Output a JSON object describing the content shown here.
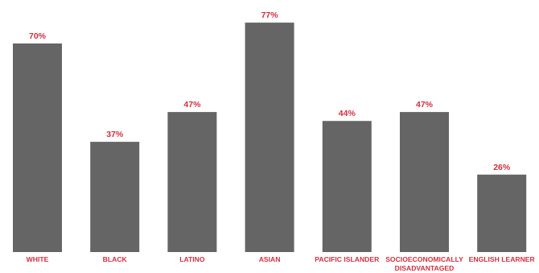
{
  "chart_data": {
    "type": "bar",
    "categories": [
      "WHITE",
      "BLACK",
      "LATINO",
      "ASIAN",
      "PACIFIC ISLANDER",
      "SOCIOECONOMICALLY DISADVANTAGED",
      "ENGLISH LEARNER"
    ],
    "category_label_lines": [
      [
        "WHITE"
      ],
      [
        "BLACK"
      ],
      [
        "LATINO"
      ],
      [
        "ASIAN"
      ],
      [
        "PACIFIC ISLANDER"
      ],
      [
        "SOCIOECONOMICALLY",
        "DISADVANTAGED"
      ],
      [
        "ENGLISH LEARNER"
      ]
    ],
    "values": [
      70,
      37,
      47,
      77,
      44,
      47,
      26
    ],
    "value_labels": [
      "70%",
      "37%",
      "47%",
      "77%",
      "44%",
      "47%",
      "26%"
    ],
    "ylim": [
      0,
      100
    ],
    "grid": false,
    "legend": "none",
    "colors": {
      "bar": "#656565",
      "label": "#d12f3f",
      "background": "#ffffff"
    }
  }
}
